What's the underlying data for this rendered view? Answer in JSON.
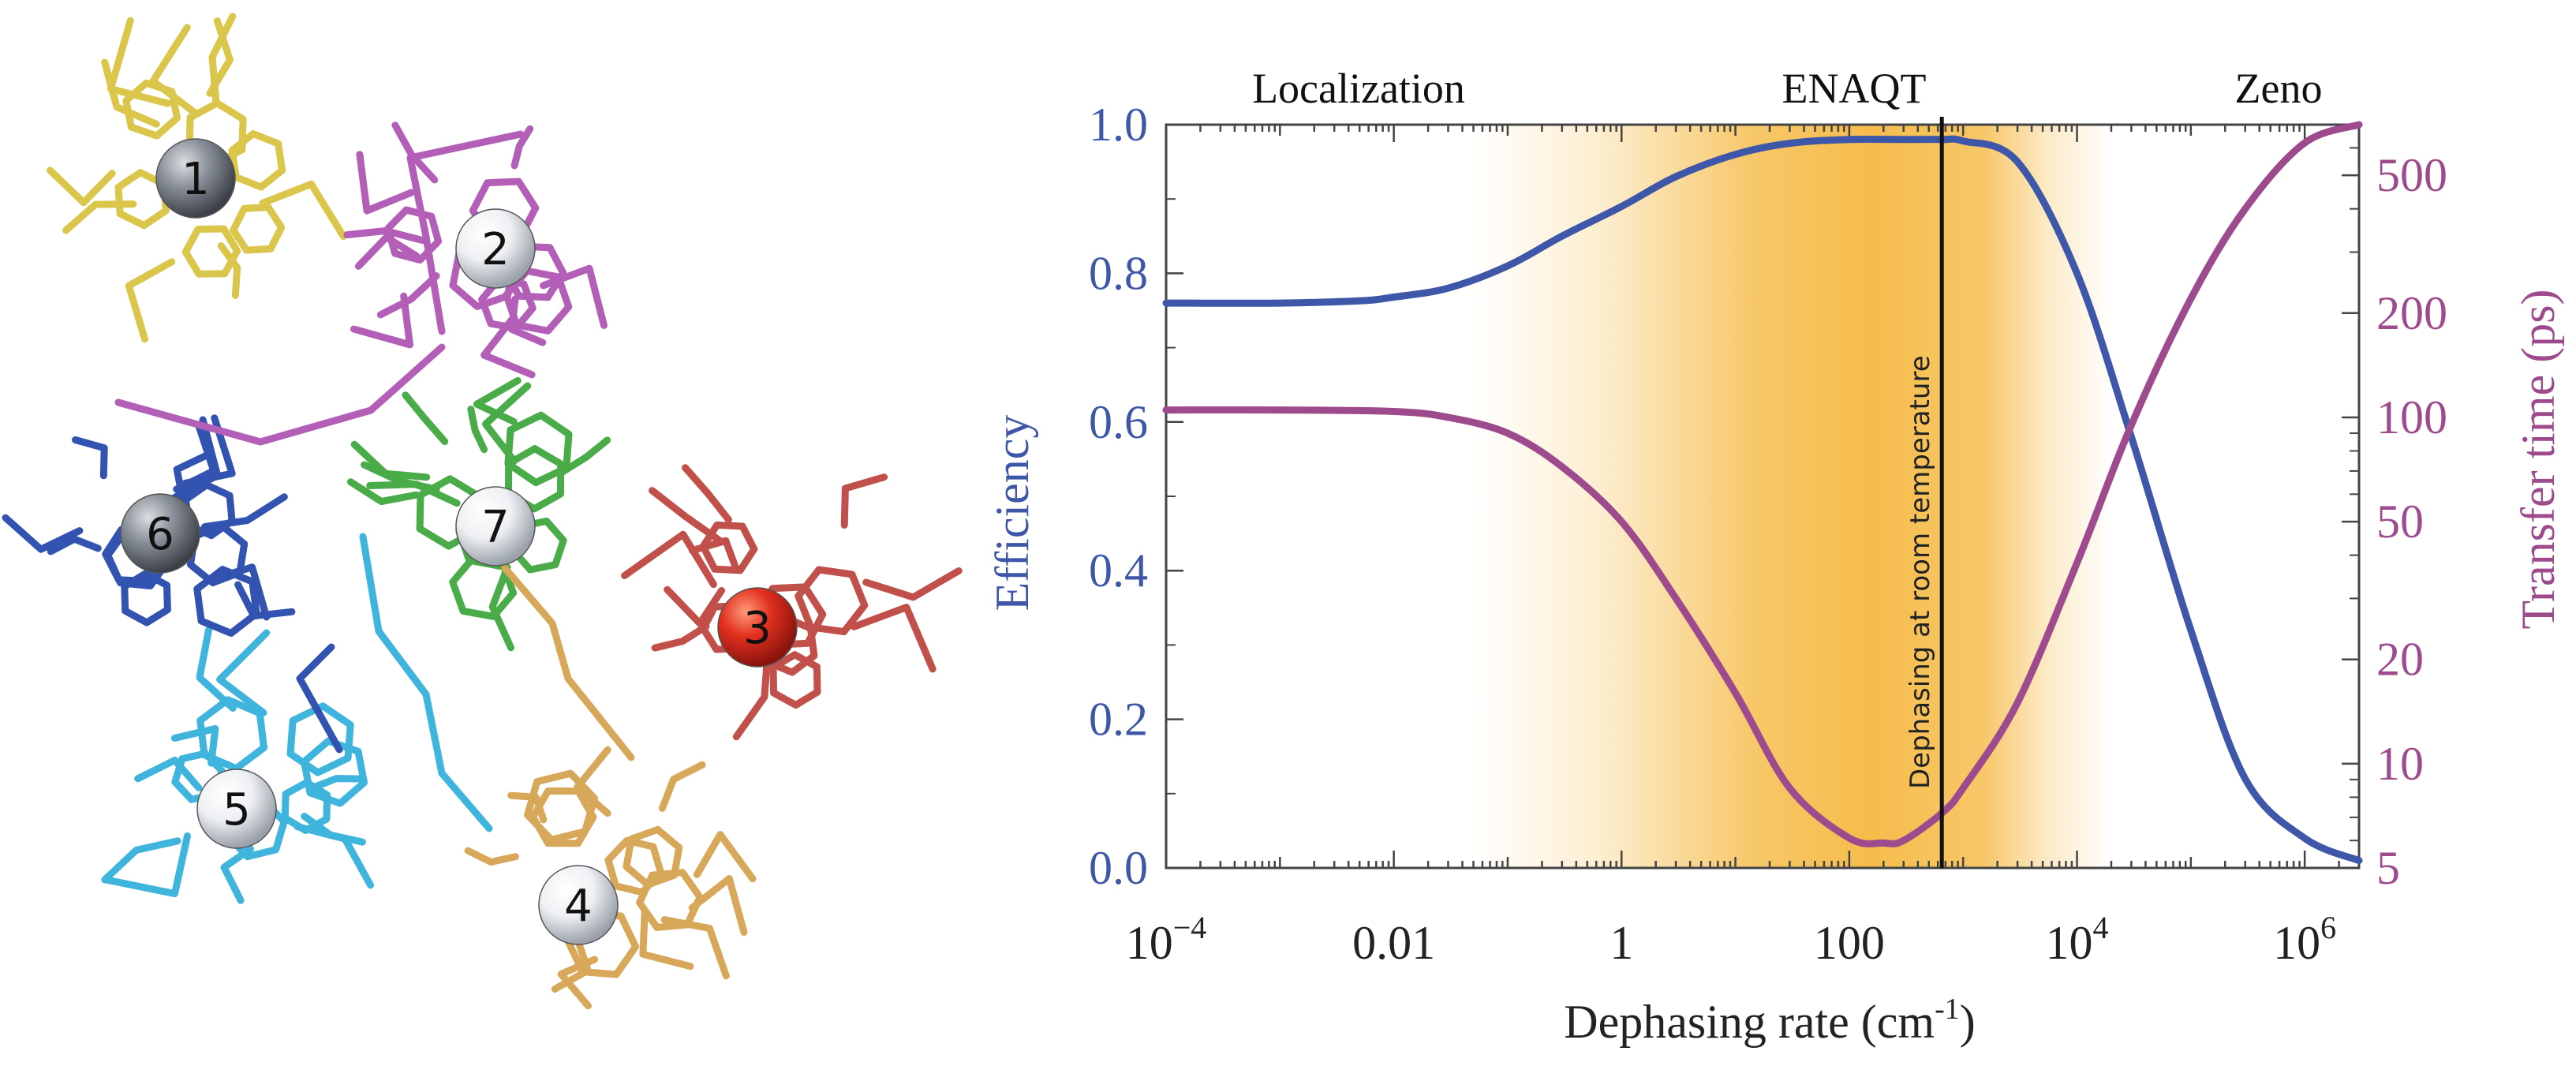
{
  "molecule": {
    "sites": [
      {
        "label": "1",
        "ball": "grey"
      },
      {
        "label": "2",
        "ball": "white"
      },
      {
        "label": "3",
        "ball": "red"
      },
      {
        "label": "4",
        "ball": "white"
      },
      {
        "label": "5",
        "ball": "white"
      },
      {
        "label": "6",
        "ball": "grey"
      },
      {
        "label": "7",
        "ball": "white"
      }
    ],
    "site_colors": [
      "#d9c64a",
      "#b35fb8",
      "#c2504a",
      "#d8a85a",
      "#3fb5dd",
      "#3353b0",
      "#4aac49"
    ]
  },
  "chart_data": {
    "type": "line",
    "regions": [
      "Localization",
      "ENAQT",
      "Zeno"
    ],
    "xlabel": "Dephasing rate (cm",
    "xlabel_sup": "-1",
    "xlabel_close": ")",
    "ylabel_left": "Efficiency",
    "ylabel_right": "Transfer time (ps)",
    "x_scale": "log",
    "xlim": [
      0.0001,
      3000000
    ],
    "ylim_left": [
      0.0,
      1.0
    ],
    "ylim_right": [
      5,
      700
    ],
    "y_right_scale": "log",
    "x_ticks": [
      {
        "value": 0.0001,
        "base": "10",
        "exp": "−4"
      },
      {
        "value": 0.01,
        "base": "0.01",
        "exp": ""
      },
      {
        "value": 1,
        "base": "1",
        "exp": ""
      },
      {
        "value": 100,
        "base": "100",
        "exp": ""
      },
      {
        "value": 10000,
        "base": "10",
        "exp": "4"
      },
      {
        "value": 1000000,
        "base": "10",
        "exp": "6"
      }
    ],
    "y_left_ticks": [
      "0.0",
      "0.2",
      "0.4",
      "0.6",
      "0.8",
      "1.0"
    ],
    "y_right_ticks": [
      5,
      10,
      20,
      50,
      100,
      200,
      500
    ],
    "vline": {
      "x": 650,
      "label": "Dephasing at room temperature"
    },
    "shading": {
      "from": 0.05,
      "to": 20000,
      "peak_from": 15,
      "peak_to": 1500,
      "color": "#f5b942"
    },
    "series": [
      {
        "axis": "left",
        "color": "#3f57a8",
        "x": [
          0.0001,
          0.001,
          0.005,
          0.01,
          0.03,
          0.1,
          0.3,
          1,
          3,
          10,
          30,
          100,
          300,
          650,
          1000,
          3000,
          10000,
          30000,
          100000,
          300000,
          1000000,
          3000000
        ],
        "y": [
          0.76,
          0.76,
          0.763,
          0.768,
          0.78,
          0.81,
          0.85,
          0.89,
          0.93,
          0.96,
          0.975,
          0.98,
          0.98,
          0.98,
          0.978,
          0.95,
          0.8,
          0.58,
          0.32,
          0.12,
          0.04,
          0.01
        ]
      },
      {
        "axis": "right",
        "color": "#9d4b8d",
        "x": [
          0.0001,
          0.001,
          0.01,
          0.03,
          0.1,
          0.3,
          1,
          3,
          10,
          30,
          100,
          200,
          300,
          650,
          1000,
          3000,
          10000,
          30000,
          100000,
          300000,
          1000000,
          3000000
        ],
        "y": [
          105,
          105,
          104,
          100,
          90,
          72,
          50,
          30,
          16,
          8.5,
          6.1,
          5.9,
          6.0,
          7.2,
          8.5,
          15,
          38,
          95,
          220,
          400,
          620,
          700
        ]
      }
    ],
    "grid": false,
    "legend": "none"
  }
}
